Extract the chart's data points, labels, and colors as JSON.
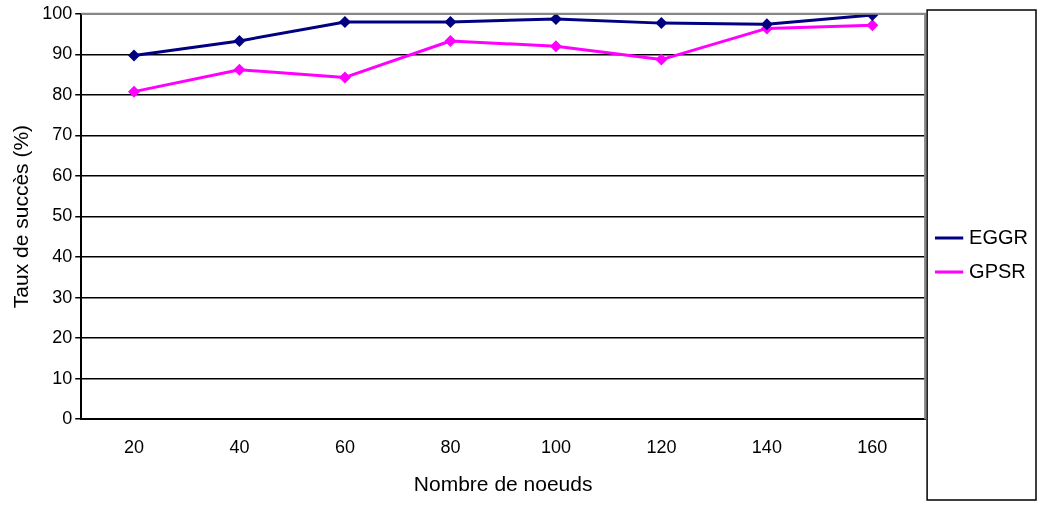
{
  "chart_data": {
    "type": "line",
    "xlabel": "Nombre de noeuds",
    "ylabel": "Taux de succès (%)",
    "categories": [
      "20",
      "40",
      "60",
      "80",
      "100",
      "120",
      "140",
      "160"
    ],
    "series": [
      {
        "name": "EGGR",
        "color": "#000080",
        "values": [
          89.7,
          93.3,
          98,
          98,
          98.7,
          97.7,
          97.4,
          99.7
        ]
      },
      {
        "name": "GPSR",
        "color": "#ff00ff",
        "values": [
          80.8,
          86.2,
          84.3,
          93.3,
          92,
          88.7,
          96.4,
          97.2
        ]
      }
    ],
    "ylim": [
      0,
      100
    ],
    "yticks": [
      0,
      10,
      20,
      30,
      40,
      50,
      60,
      70,
      80,
      90,
      100
    ],
    "grid": "y",
    "legend": "right",
    "marker": "diamond",
    "line_style": "solid"
  }
}
